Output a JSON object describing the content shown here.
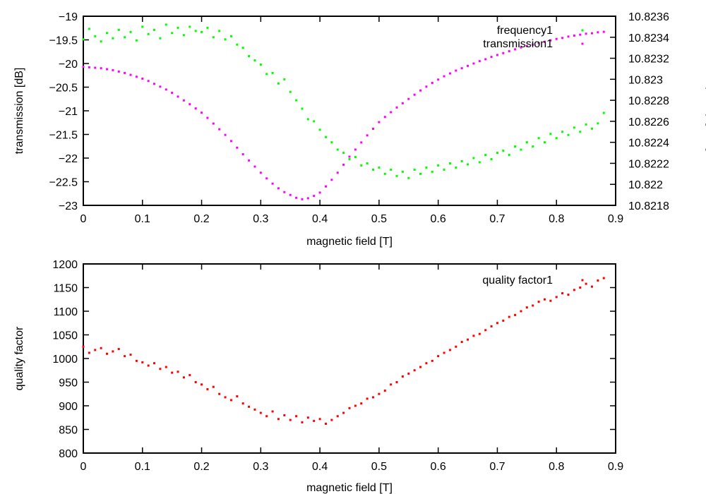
{
  "chart_data": [
    {
      "type": "scatter",
      "xlabel": "magnetic field [T]",
      "ylabel": "transmission [dB]",
      "y2label": "frequency [GHz]",
      "xlim": [
        0,
        0.9
      ],
      "ylim": [
        -23,
        -19
      ],
      "y2lim": [
        10.8218,
        10.8236
      ],
      "xticks": [
        "0",
        "0.1",
        "0.2",
        "0.3",
        "0.4",
        "0.5",
        "0.6",
        "0.7",
        "0.8",
        "0.9"
      ],
      "yticks": [
        "−23",
        "−22.5",
        "−22",
        "−21.5",
        "−21",
        "−20.5",
        "−20",
        "−19.5",
        "−19"
      ],
      "y2ticks": [
        "10.8218",
        "10.822",
        "10.8222",
        "10.8224",
        "10.8226",
        "10.8228",
        "10.823",
        "10.8232",
        "10.8234",
        "10.8236"
      ],
      "grid": false,
      "legend_position": "top-right",
      "x": [
        0,
        0.01,
        0.02,
        0.03,
        0.04,
        0.05,
        0.06,
        0.07,
        0.08,
        0.09,
        0.1,
        0.11,
        0.12,
        0.13,
        0.14,
        0.15,
        0.16,
        0.17,
        0.18,
        0.19,
        0.2,
        0.21,
        0.22,
        0.23,
        0.24,
        0.25,
        0.26,
        0.27,
        0.28,
        0.29,
        0.3,
        0.31,
        0.32,
        0.33,
        0.34,
        0.35,
        0.36,
        0.37,
        0.38,
        0.39,
        0.4,
        0.41,
        0.42,
        0.43,
        0.44,
        0.45,
        0.46,
        0.47,
        0.48,
        0.49,
        0.5,
        0.51,
        0.52,
        0.53,
        0.54,
        0.55,
        0.56,
        0.57,
        0.58,
        0.59,
        0.6,
        0.61,
        0.62,
        0.63,
        0.64,
        0.65,
        0.66,
        0.67,
        0.68,
        0.69,
        0.7,
        0.71,
        0.72,
        0.73,
        0.74,
        0.75,
        0.76,
        0.77,
        0.78,
        0.79,
        0.8,
        0.81,
        0.82,
        0.83,
        0.84,
        0.85,
        0.86,
        0.87,
        0.88
      ],
      "series": [
        {
          "name": "frequency1",
          "axis": "y2",
          "color": "#00ff00",
          "values": [
            10.82338,
            10.82348,
            10.82341,
            10.82336,
            10.82344,
            10.82339,
            10.82347,
            10.8234,
            10.82345,
            10.82337,
            10.8235,
            10.82343,
            10.82347,
            10.82339,
            10.82352,
            10.82344,
            10.82349,
            10.82342,
            10.8235,
            10.82346,
            10.82345,
            10.82349,
            10.8234,
            10.82346,
            10.82338,
            10.82341,
            10.82333,
            10.8233,
            10.82322,
            10.82318,
            10.82314,
            10.82305,
            10.82306,
            10.82296,
            10.823,
            10.82288,
            10.8228,
            10.82272,
            10.82262,
            10.8226,
            10.82252,
            10.82245,
            10.8224,
            10.82233,
            10.8223,
            10.82224,
            10.82226,
            10.82218,
            10.8222,
            10.82214,
            10.82216,
            10.8221,
            10.82214,
            10.82208,
            10.82212,
            10.82206,
            10.82214,
            10.8221,
            10.82216,
            10.82212,
            10.82218,
            10.82214,
            10.8222,
            10.82216,
            10.82222,
            10.82219,
            10.82225,
            10.82221,
            10.82228,
            10.82224,
            10.8223,
            10.82232,
            10.82228,
            10.82236,
            10.82233,
            10.8224,
            10.82236,
            10.82244,
            10.8224,
            10.82248,
            10.82244,
            10.8225,
            10.82247,
            10.82254,
            10.8225,
            10.82257,
            10.82253,
            10.82258,
            10.82268
          ]
        },
        {
          "name": "transmission1",
          "axis": "y",
          "color": "#ff00ff",
          "values": [
            -20.07,
            -20.08,
            -20.09,
            -20.1,
            -20.12,
            -20.14,
            -20.17,
            -20.2,
            -20.24,
            -20.28,
            -20.32,
            -20.37,
            -20.43,
            -20.49,
            -20.55,
            -20.62,
            -20.7,
            -20.78,
            -20.86,
            -20.95,
            -21.04,
            -21.15,
            -21.27,
            -21.39,
            -21.51,
            -21.64,
            -21.78,
            -21.92,
            -22.05,
            -22.18,
            -22.31,
            -22.43,
            -22.54,
            -22.64,
            -22.72,
            -22.78,
            -22.84,
            -22.87,
            -22.85,
            -22.8,
            -22.73,
            -22.6,
            -22.46,
            -22.31,
            -22.14,
            -21.97,
            -21.82,
            -21.67,
            -21.52,
            -21.38,
            -21.24,
            -21.13,
            -21.03,
            -20.93,
            -20.84,
            -20.75,
            -20.66,
            -20.57,
            -20.49,
            -20.41,
            -20.34,
            -20.27,
            -20.21,
            -20.15,
            -20.1,
            -20.05,
            -20.0,
            -19.95,
            -19.91,
            -19.86,
            -19.82,
            -19.78,
            -19.74,
            -19.7,
            -19.66,
            -19.63,
            -19.6,
            -19.57,
            -19.54,
            -19.51,
            -19.48,
            -19.46,
            -19.43,
            -19.41,
            -19.39,
            -19.37,
            -19.36,
            -19.34,
            -19.33
          ]
        }
      ]
    },
    {
      "type": "scatter",
      "xlabel": "magnetic field [T]",
      "ylabel": "quality factor",
      "xlim": [
        0,
        0.9
      ],
      "ylim": [
        800,
        1200
      ],
      "xticks": [
        "0",
        "0.1",
        "0.2",
        "0.3",
        "0.4",
        "0.5",
        "0.6",
        "0.7",
        "0.8",
        "0.9"
      ],
      "yticks": [
        "800",
        "850",
        "900",
        "950",
        "1000",
        "1050",
        "1100",
        "1150",
        "1200"
      ],
      "grid": false,
      "legend_position": "top-right",
      "x": [
        0,
        0.01,
        0.02,
        0.03,
        0.04,
        0.05,
        0.06,
        0.07,
        0.08,
        0.09,
        0.1,
        0.11,
        0.12,
        0.13,
        0.14,
        0.15,
        0.16,
        0.17,
        0.18,
        0.19,
        0.2,
        0.21,
        0.22,
        0.23,
        0.24,
        0.25,
        0.26,
        0.27,
        0.28,
        0.29,
        0.3,
        0.31,
        0.32,
        0.33,
        0.34,
        0.35,
        0.36,
        0.37,
        0.38,
        0.39,
        0.4,
        0.41,
        0.42,
        0.43,
        0.44,
        0.45,
        0.46,
        0.47,
        0.48,
        0.49,
        0.5,
        0.51,
        0.52,
        0.53,
        0.54,
        0.55,
        0.56,
        0.57,
        0.58,
        0.59,
        0.6,
        0.61,
        0.62,
        0.63,
        0.64,
        0.65,
        0.66,
        0.67,
        0.68,
        0.69,
        0.7,
        0.71,
        0.72,
        0.73,
        0.74,
        0.75,
        0.76,
        0.77,
        0.78,
        0.79,
        0.8,
        0.81,
        0.82,
        0.83,
        0.84,
        0.85,
        0.86,
        0.87,
        0.88
      ],
      "series": [
        {
          "name": "quality factor1",
          "axis": "y",
          "color": "#ff0000",
          "values": [
            1025,
            1012,
            1018,
            1022,
            1010,
            1015,
            1020,
            1005,
            1008,
            995,
            992,
            985,
            990,
            978,
            982,
            970,
            972,
            960,
            965,
            950,
            945,
            935,
            940,
            925,
            918,
            912,
            920,
            905,
            898,
            892,
            885,
            878,
            888,
            872,
            880,
            870,
            878,
            865,
            875,
            868,
            872,
            862,
            870,
            878,
            885,
            895,
            900,
            905,
            915,
            918,
            925,
            932,
            945,
            950,
            962,
            968,
            975,
            982,
            990,
            995,
            1005,
            1012,
            1018,
            1025,
            1035,
            1040,
            1048,
            1052,
            1060,
            1068,
            1075,
            1080,
            1088,
            1092,
            1100,
            1108,
            1112,
            1120,
            1125,
            1122,
            1130,
            1138,
            1135,
            1145,
            1150,
            1158,
            1152,
            1165,
            1170
          ]
        }
      ]
    }
  ]
}
